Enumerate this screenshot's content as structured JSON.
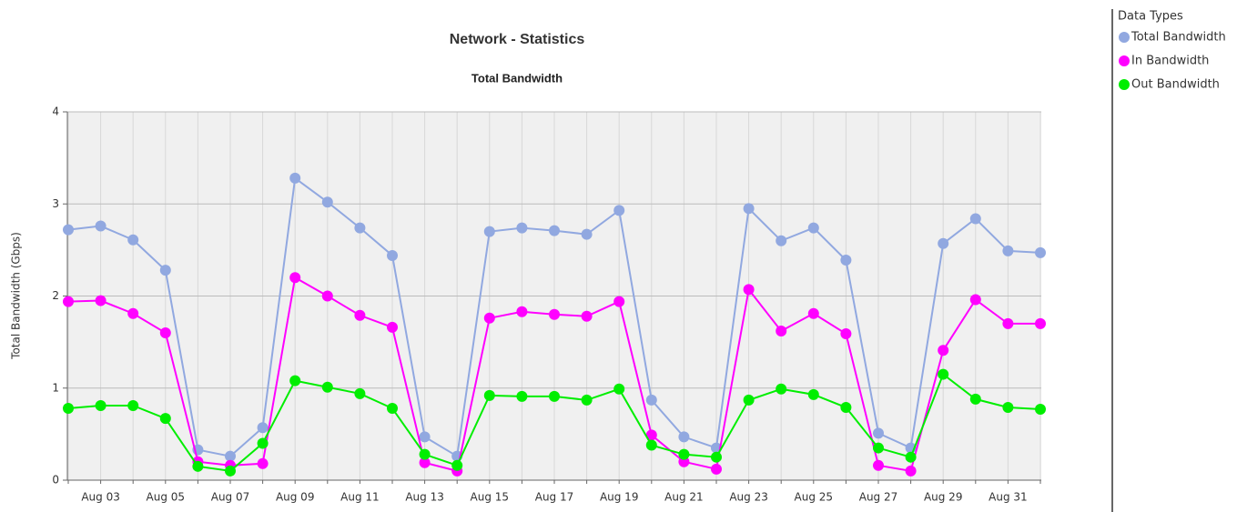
{
  "chart_data": {
    "type": "line",
    "title": "Network - Statistics",
    "subtitle": "Total Bandwidth",
    "y_label": "Total Bandwidth (Gbps)",
    "legend_title": "Data Types",
    "legend": "right",
    "categories": [
      null,
      "Aug 03",
      null,
      "Aug 05",
      null,
      "Aug 07",
      null,
      "Aug 09",
      null,
      "Aug 11",
      null,
      "Aug 13",
      null,
      "Aug 15",
      null,
      "Aug 17",
      null,
      "Aug 19",
      null,
      "Aug 21",
      null,
      "Aug 23",
      null,
      "Aug 25",
      null,
      "Aug 27",
      null,
      "Aug 29",
      null,
      "Aug 31",
      null
    ],
    "ylim": [
      0,
      4
    ],
    "yticks": [
      0,
      1,
      2,
      3,
      4
    ],
    "grid": true,
    "series": [
      {
        "name": "Total Bandwidth",
        "color": "#91a8e0",
        "values": [
          2.72,
          2.76,
          2.61,
          2.28,
          0.33,
          0.26,
          0.57,
          3.28,
          3.02,
          2.74,
          2.44,
          0.47,
          0.26,
          2.7,
          2.74,
          2.71,
          2.67,
          2.93,
          0.87,
          0.47,
          0.35,
          2.95,
          2.6,
          2.74,
          2.39,
          0.51,
          0.35,
          2.57,
          2.84,
          2.49,
          2.47
        ]
      },
      {
        "name": "In Bandwidth",
        "color": "#ff00ff",
        "values": [
          1.94,
          1.95,
          1.81,
          1.6,
          0.2,
          0.16,
          0.18,
          2.2,
          2.0,
          1.79,
          1.66,
          0.19,
          0.1,
          1.76,
          1.83,
          1.8,
          1.78,
          1.94,
          0.49,
          0.2,
          0.12,
          2.07,
          1.62,
          1.81,
          1.59,
          0.16,
          0.1,
          1.41,
          1.96,
          1.7,
          1.7
        ]
      },
      {
        "name": "Out Bandwidth",
        "color": "#00ee00",
        "values": [
          0.78,
          0.81,
          0.81,
          0.67,
          0.15,
          0.1,
          0.4,
          1.08,
          1.01,
          0.94,
          0.78,
          0.28,
          0.16,
          0.92,
          0.91,
          0.91,
          0.87,
          0.99,
          0.38,
          0.28,
          0.25,
          0.87,
          0.99,
          0.93,
          0.79,
          0.35,
          0.25,
          1.15,
          0.88,
          0.79,
          0.77
        ]
      }
    ]
  }
}
